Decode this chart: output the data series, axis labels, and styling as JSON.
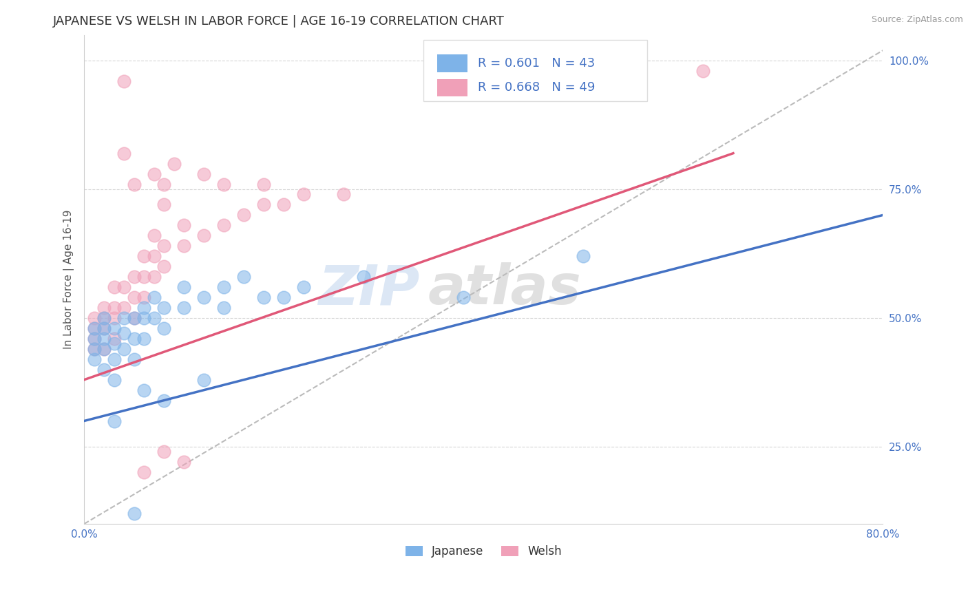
{
  "title": "JAPANESE VS WELSH IN LABOR FORCE | AGE 16-19 CORRELATION CHART",
  "source_text": "Source: ZipAtlas.com",
  "ylabel": "In Labor Force | Age 16-19",
  "xlim": [
    0.0,
    0.8
  ],
  "ylim": [
    0.1,
    1.05
  ],
  "ytick_labels": [
    "25.0%",
    "50.0%",
    "75.0%",
    "100.0%"
  ],
  "ytick_values": [
    0.25,
    0.5,
    0.75,
    1.0
  ],
  "grid_color": "#cccccc",
  "background_color": "#ffffff",
  "japanese_color": "#7eb3e8",
  "welsh_color": "#f0a0b8",
  "japanese_R": 0.601,
  "japanese_N": 43,
  "welsh_R": 0.668,
  "welsh_N": 49,
  "legend_label_japanese": "Japanese",
  "legend_label_welsh": "Welsh",
  "watermark_zip": "ZIP",
  "watermark_atlas": "atlas",
  "ref_line_color": "#bbbbbb",
  "blue_line_color": "#4472c4",
  "pink_line_color": "#e05878",
  "japanese_scatter": [
    [
      0.01,
      0.42
    ],
    [
      0.01,
      0.44
    ],
    [
      0.01,
      0.46
    ],
    [
      0.01,
      0.48
    ],
    [
      0.02,
      0.4
    ],
    [
      0.02,
      0.44
    ],
    [
      0.02,
      0.46
    ],
    [
      0.02,
      0.48
    ],
    [
      0.02,
      0.5
    ],
    [
      0.03,
      0.38
    ],
    [
      0.03,
      0.42
    ],
    [
      0.03,
      0.45
    ],
    [
      0.03,
      0.48
    ],
    [
      0.04,
      0.44
    ],
    [
      0.04,
      0.47
    ],
    [
      0.04,
      0.5
    ],
    [
      0.05,
      0.42
    ],
    [
      0.05,
      0.46
    ],
    [
      0.05,
      0.5
    ],
    [
      0.06,
      0.46
    ],
    [
      0.06,
      0.5
    ],
    [
      0.06,
      0.52
    ],
    [
      0.07,
      0.5
    ],
    [
      0.07,
      0.54
    ],
    [
      0.08,
      0.48
    ],
    [
      0.08,
      0.52
    ],
    [
      0.1,
      0.52
    ],
    [
      0.1,
      0.56
    ],
    [
      0.12,
      0.54
    ],
    [
      0.14,
      0.52
    ],
    [
      0.14,
      0.56
    ],
    [
      0.16,
      0.58
    ],
    [
      0.18,
      0.54
    ],
    [
      0.2,
      0.54
    ],
    [
      0.22,
      0.56
    ],
    [
      0.28,
      0.58
    ],
    [
      0.38,
      0.54
    ],
    [
      0.5,
      0.62
    ],
    [
      0.03,
      0.3
    ],
    [
      0.05,
      0.12
    ],
    [
      0.06,
      0.36
    ],
    [
      0.08,
      0.34
    ],
    [
      0.12,
      0.38
    ]
  ],
  "welsh_scatter": [
    [
      0.01,
      0.44
    ],
    [
      0.01,
      0.46
    ],
    [
      0.01,
      0.48
    ],
    [
      0.01,
      0.5
    ],
    [
      0.02,
      0.44
    ],
    [
      0.02,
      0.48
    ],
    [
      0.02,
      0.5
    ],
    [
      0.02,
      0.52
    ],
    [
      0.03,
      0.46
    ],
    [
      0.03,
      0.5
    ],
    [
      0.03,
      0.52
    ],
    [
      0.03,
      0.56
    ],
    [
      0.04,
      0.52
    ],
    [
      0.04,
      0.56
    ],
    [
      0.05,
      0.5
    ],
    [
      0.05,
      0.54
    ],
    [
      0.05,
      0.58
    ],
    [
      0.06,
      0.54
    ],
    [
      0.06,
      0.58
    ],
    [
      0.06,
      0.62
    ],
    [
      0.07,
      0.58
    ],
    [
      0.07,
      0.62
    ],
    [
      0.07,
      0.66
    ],
    [
      0.08,
      0.6
    ],
    [
      0.08,
      0.64
    ],
    [
      0.1,
      0.64
    ],
    [
      0.1,
      0.68
    ],
    [
      0.12,
      0.66
    ],
    [
      0.14,
      0.68
    ],
    [
      0.16,
      0.7
    ],
    [
      0.18,
      0.72
    ],
    [
      0.2,
      0.72
    ],
    [
      0.22,
      0.74
    ],
    [
      0.26,
      0.74
    ],
    [
      0.04,
      0.82
    ],
    [
      0.05,
      0.76
    ],
    [
      0.07,
      0.78
    ],
    [
      0.08,
      0.72
    ],
    [
      0.08,
      0.76
    ],
    [
      0.09,
      0.8
    ],
    [
      0.12,
      0.78
    ],
    [
      0.14,
      0.76
    ],
    [
      0.18,
      0.76
    ],
    [
      0.55,
      0.98
    ],
    [
      0.62,
      0.98
    ],
    [
      0.04,
      0.96
    ],
    [
      0.08,
      0.24
    ],
    [
      0.06,
      0.2
    ],
    [
      0.1,
      0.22
    ]
  ],
  "blue_line_x": [
    0.0,
    0.8
  ],
  "blue_line_y": [
    0.3,
    0.7
  ],
  "pink_line_x": [
    0.0,
    0.65
  ],
  "pink_line_y": [
    0.38,
    0.82
  ],
  "ref_line_x": [
    0.0,
    0.8
  ],
  "ref_line_y": [
    0.1,
    1.02
  ]
}
